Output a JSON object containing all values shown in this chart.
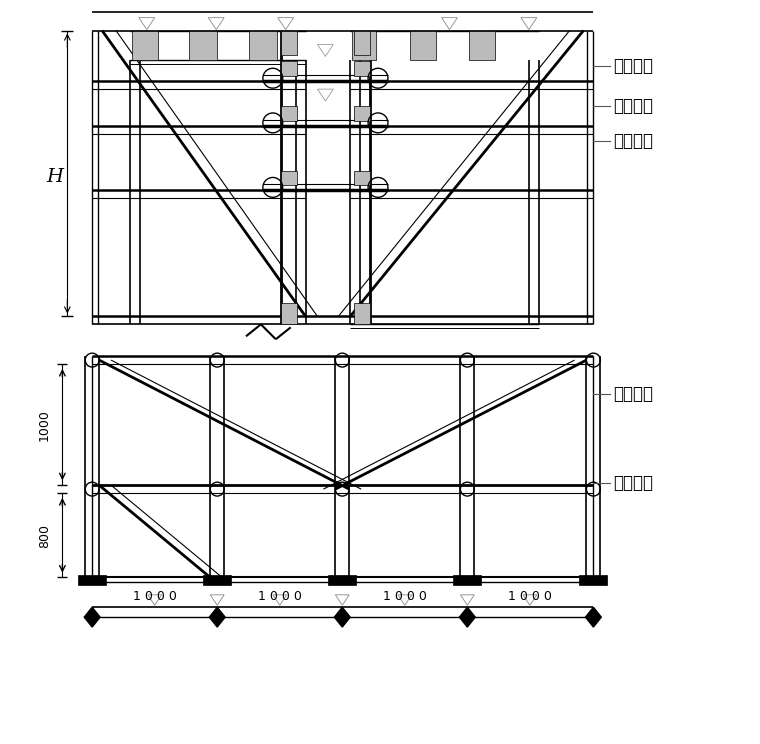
{
  "bg_color": "#ffffff",
  "line_color": "#000000",
  "labels": {
    "H": "H",
    "label1": "框梁斜撑",
    "label2": "对拉丝杆",
    "label3": "加固钓管",
    "label4": "加固斜撑",
    "label5": "支撑垫板",
    "dim1000": "1 0 0 0",
    "dim_1000": "1000",
    "dim_800": "800"
  }
}
